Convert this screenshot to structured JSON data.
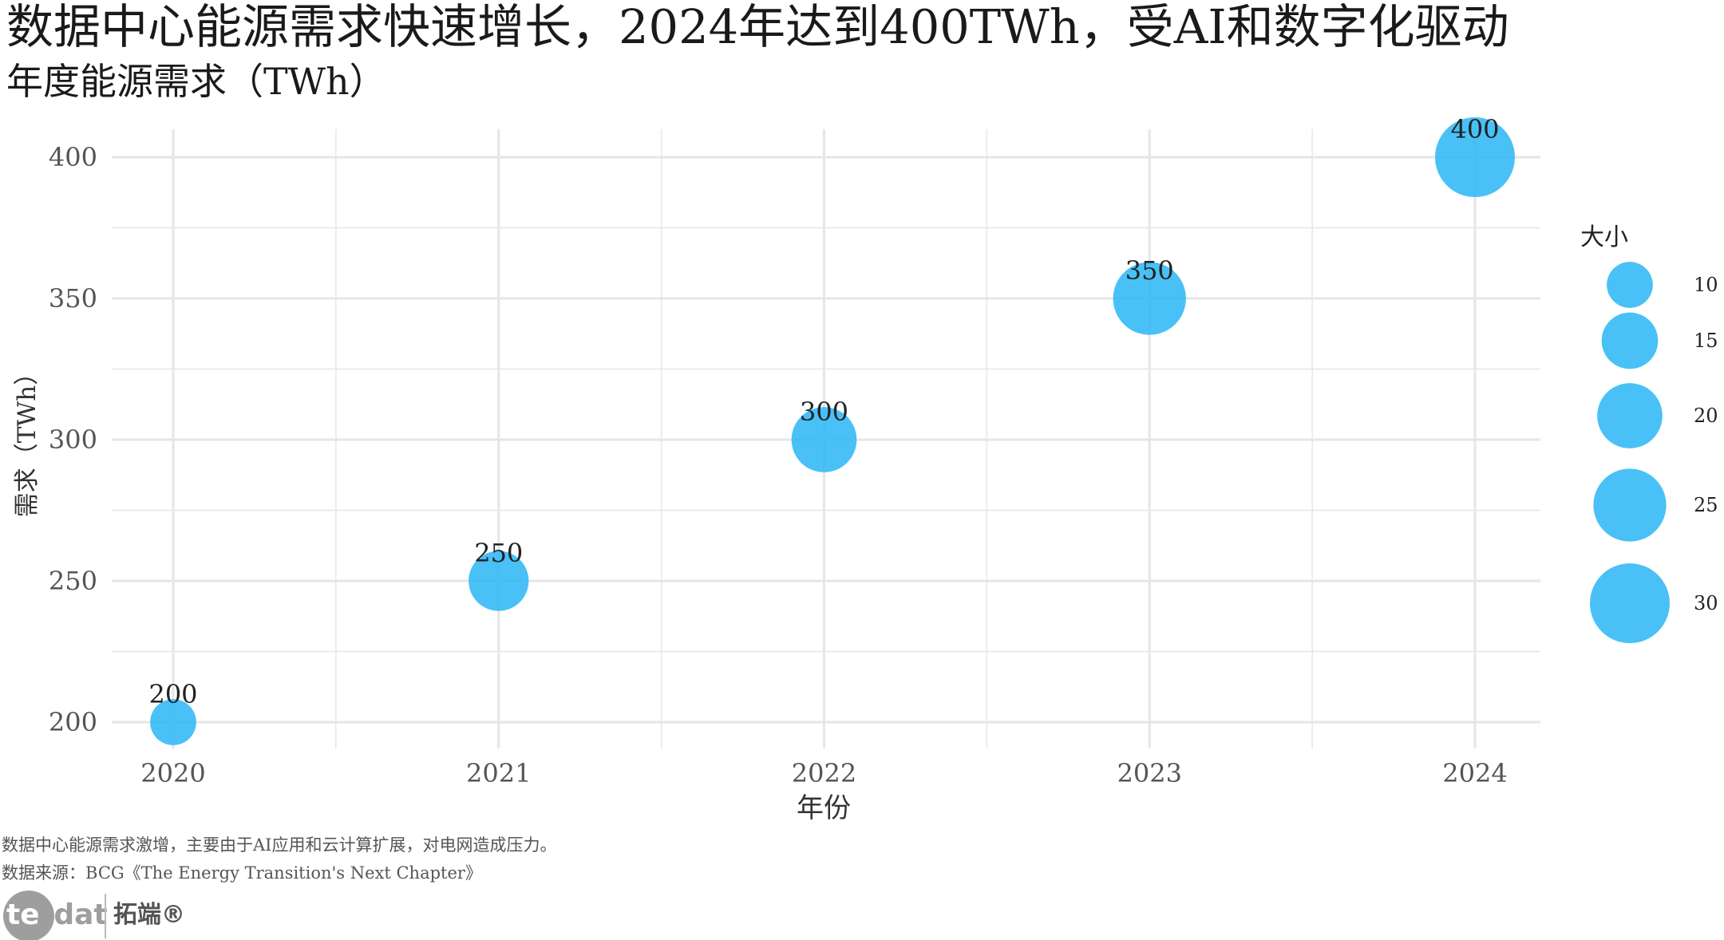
{
  "title": "数据中心能源需求快速增长，2024年达到400TWh，受AI和数字化驱动",
  "subtitle": "年度能源需求（TWh）",
  "caption_line1": "数据中心能源需求激增，主要由于AI应用和云计算扩展，对电网造成压力。",
  "caption_line2": "数据来源：BCG《The Energy Transition's Next Chapter》",
  "logo": {
    "text_left": "tecdat",
    "text_right": "拓端®"
  },
  "colors": {
    "bubble": "#29B6F6",
    "grid": "#E6E6E6",
    "text": "#222222",
    "axis_text": "#555555"
  },
  "chart_data": {
    "type": "scatter",
    "xlabel": "年份",
    "ylabel": "需求（TWh）",
    "x": [
      2020,
      2021,
      2022,
      2023,
      2024
    ],
    "y": [
      200,
      250,
      300,
      350,
      400
    ],
    "size": [
      10,
      17,
      20,
      25,
      30
    ],
    "point_labels": [
      "200",
      "250",
      "300",
      "350",
      "400"
    ],
    "x_ticks": [
      "2020",
      "2021",
      "2022",
      "2023",
      "2024"
    ],
    "y_ticks": [
      "200",
      "250",
      "300",
      "350",
      "400"
    ],
    "xlim": [
      2019.9,
      2024.2
    ],
    "ylim": [
      190,
      410
    ],
    "grid": true,
    "legend": {
      "title": "大小",
      "position": "right",
      "values": [
        10,
        15,
        20,
        25,
        30
      ],
      "labels": [
        "10",
        "15",
        "20",
        "25",
        "30"
      ]
    }
  }
}
